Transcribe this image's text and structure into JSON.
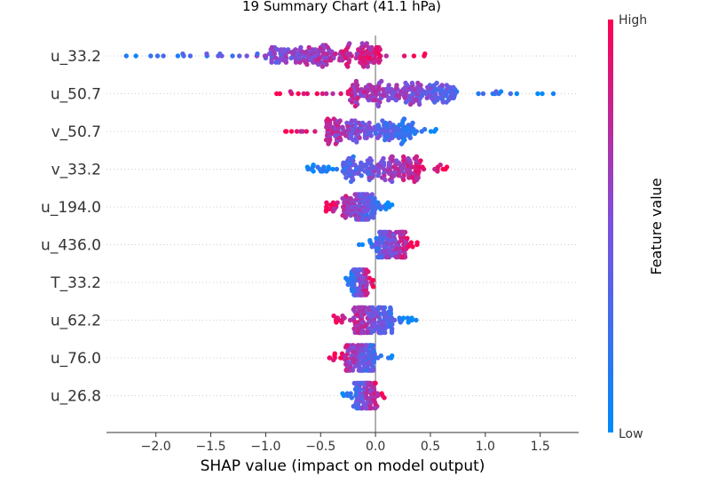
{
  "chart_data": {
    "type": "scatter",
    "subtype": "shap-beeswarm",
    "title": "19 Summary Chart (41.1 hPa)",
    "xlabel": "SHAP value (impact on model output)",
    "xlim": [
      -2.45,
      1.85
    ],
    "xticks": [
      -2.0,
      -1.5,
      -1.0,
      -0.5,
      0.0,
      0.5,
      1.0,
      1.5
    ],
    "xtick_labels": [
      "−2.0",
      "−1.5",
      "−1.0",
      "−0.5",
      "0.0",
      "0.5",
      "1.0",
      "1.5"
    ],
    "grid": false,
    "colorbar": {
      "label": "Feature value",
      "high_label": "High",
      "low_label": "Low",
      "low_color": "#008bfb",
      "mid_color": "#7a52e0",
      "high_color": "#ff0052"
    },
    "features": [
      {
        "name": "u_33.2",
        "min": -2.27,
        "max": 0.45,
        "q1": -0.95,
        "q3": 0.05,
        "trend": "pos",
        "n": 230
      },
      {
        "name": "u_50.7",
        "min": -0.9,
        "max": 1.62,
        "q1": -0.25,
        "q3": 0.75,
        "trend": "neg",
        "n": 230
      },
      {
        "name": "v_50.7",
        "min": -0.82,
        "max": 0.55,
        "q1": -0.45,
        "q3": 0.35,
        "trend": "neg",
        "n": 200
      },
      {
        "name": "v_33.2",
        "min": -0.62,
        "max": 0.65,
        "q1": -0.3,
        "q3": 0.4,
        "trend": "pos",
        "n": 200
      },
      {
        "name": "u_194.0",
        "min": -0.45,
        "max": 0.15,
        "q1": -0.3,
        "q3": 0.0,
        "trend": "neg",
        "n": 140
      },
      {
        "name": "u_436.0",
        "min": -0.15,
        "max": 0.38,
        "q1": 0.0,
        "q3": 0.28,
        "trend": "pos",
        "n": 150
      },
      {
        "name": "T_33.2",
        "min": -0.27,
        "max": -0.02,
        "q1": -0.22,
        "q3": -0.08,
        "trend": "pos",
        "n": 110
      },
      {
        "name": "u_62.2",
        "min": -0.38,
        "max": 0.37,
        "q1": -0.2,
        "q3": 0.15,
        "trend": "neg",
        "n": 180
      },
      {
        "name": "u_76.0",
        "min": -0.42,
        "max": 0.15,
        "q1": -0.28,
        "q3": 0.0,
        "trend": "neg",
        "n": 150
      },
      {
        "name": "u_26.8",
        "min": -0.3,
        "max": 0.08,
        "q1": -0.18,
        "q3": 0.0,
        "trend": "pos",
        "n": 120
      }
    ]
  }
}
